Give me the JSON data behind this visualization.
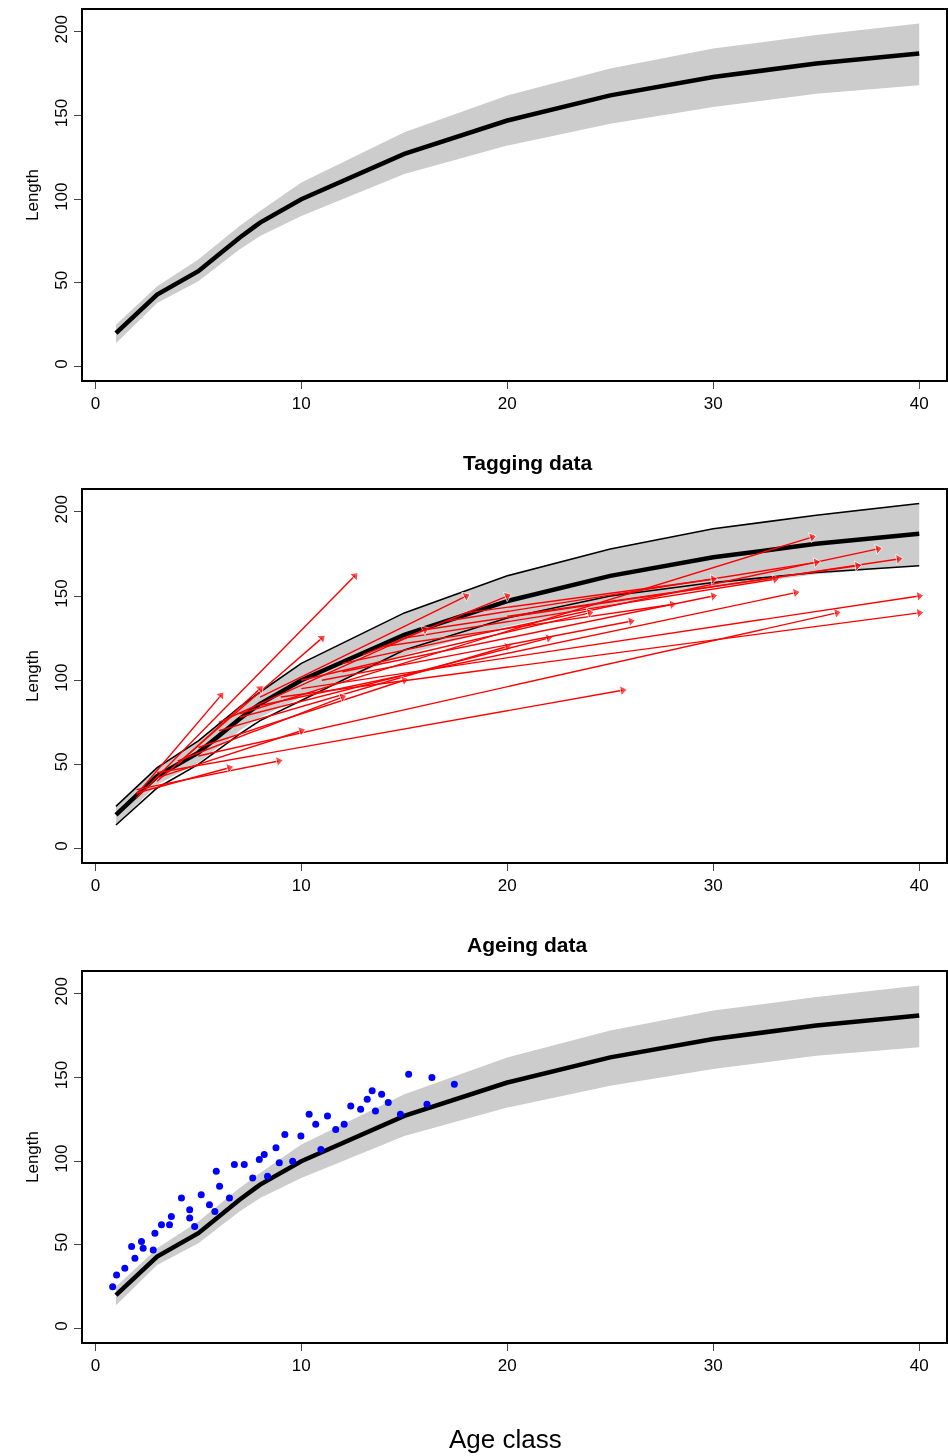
{
  "chart_data": [
    {
      "type": "line",
      "ylabel": "Length",
      "xlim": [
        -0.6,
        41.3
      ],
      "ylim": [
        -8,
        213
      ],
      "xticks": [
        0,
        10,
        20,
        30,
        40
      ],
      "yticks": [
        0,
        50,
        100,
        150,
        200
      ],
      "series": [
        {
          "color": "#000000",
          "x": [
            1,
            3,
            5,
            7,
            8,
            10,
            15,
            20,
            25,
            30,
            35,
            40
          ],
          "values": [
            20,
            43,
            57,
            77,
            86,
            100,
            127,
            147,
            162,
            173,
            181,
            187
          ],
          "lower": [
            14,
            38,
            51,
            70,
            78,
            90,
            115,
            132,
            145,
            155,
            163,
            168
          ],
          "upper": [
            25,
            48,
            64,
            84,
            93,
            110,
            140,
            162,
            178,
            190,
            198,
            205
          ]
        }
      ]
    },
    {
      "type": "line",
      "title": "Tagging data",
      "ylabel": "Length",
      "xlim": [
        -0.6,
        41.3
      ],
      "ylim": [
        -8,
        213
      ],
      "xticks": [
        0,
        10,
        20,
        30,
        40
      ],
      "yticks": [
        0,
        50,
        100,
        150,
        200
      ],
      "series": [
        {
          "color": "#000000",
          "x": [
            1,
            3,
            5,
            7,
            8,
            10,
            15,
            20,
            25,
            30,
            35,
            40
          ],
          "values": [
            20,
            43,
            57,
            77,
            86,
            100,
            127,
            147,
            162,
            173,
            181,
            187
          ],
          "lower": [
            14,
            38,
            51,
            70,
            78,
            90,
            115,
            132,
            145,
            155,
            163,
            168
          ],
          "upper": [
            25,
            48,
            64,
            84,
            93,
            110,
            140,
            162,
            178,
            190,
            198,
            205
          ]
        },
        {
          "color": "#000000",
          "x": [
            1,
            3,
            5,
            7,
            8,
            10,
            15,
            20,
            25,
            30,
            35,
            40
          ],
          "values": [
            25,
            48,
            64,
            84,
            93,
            110,
            140,
            162,
            178,
            190,
            198,
            205
          ]
        },
        {
          "color": "#000000",
          "x": [
            1,
            3,
            5,
            7,
            8,
            10,
            15,
            20,
            25,
            30,
            35,
            40
          ],
          "values": [
            14,
            36,
            50,
            68,
            76,
            88,
            118,
            137,
            150,
            158,
            164,
            168
          ]
        },
        {
          "color": "#ff0000",
          "marker": "triangle",
          "x": [
            2,
            12.6
          ],
          "values": [
            30,
            162
          ]
        },
        {
          "color": "#ff0000",
          "marker": "triangle",
          "x": [
            2,
            6.1
          ],
          "values": [
            32,
            91
          ]
        },
        {
          "color": "#ff0000",
          "marker": "triangle",
          "x": [
            3,
            11
          ],
          "values": [
            40,
            125
          ]
        },
        {
          "color": "#ff0000",
          "marker": "triangle",
          "x": [
            2,
            8.9
          ],
          "values": [
            35,
            52
          ]
        },
        {
          "color": "#ff0000",
          "marker": "triangle",
          "x": [
            2,
            6.5
          ],
          "values": [
            33,
            48
          ]
        },
        {
          "color": "#ff0000",
          "marker": "triangle",
          "x": [
            3,
            25.6
          ],
          "values": [
            45,
            94
          ]
        },
        {
          "color": "#ff0000",
          "marker": "triangle",
          "x": [
            5,
            36
          ],
          "values": [
            55,
            140
          ]
        },
        {
          "color": "#ff0000",
          "marker": "triangle",
          "x": [
            7,
            34.8
          ],
          "values": [
            80,
            185
          ]
        },
        {
          "color": "#ff0000",
          "marker": "triangle",
          "x": [
            10,
            40
          ],
          "values": [
            95,
            150
          ]
        },
        {
          "color": "#ff0000",
          "marker": "triangle",
          "x": [
            8,
            34
          ],
          "values": [
            85,
            152
          ]
        },
        {
          "color": "#ff0000",
          "marker": "triangle",
          "x": [
            12,
            38
          ],
          "values": [
            110,
            178
          ]
        },
        {
          "color": "#ff0000",
          "marker": "triangle",
          "x": [
            15,
            33
          ],
          "values": [
            125,
            160
          ]
        },
        {
          "color": "#ff0000",
          "marker": "triangle",
          "x": [
            17,
            35
          ],
          "values": [
            135,
            170
          ]
        },
        {
          "color": "#ff0000",
          "marker": "triangle",
          "x": [
            14,
            28
          ],
          "values": [
            120,
            145
          ]
        },
        {
          "color": "#ff0000",
          "marker": "triangle",
          "x": [
            18,
            30
          ],
          "values": [
            140,
            160
          ]
        },
        {
          "color": "#ff0000",
          "marker": "triangle",
          "x": [
            6,
            20
          ],
          "values": [
            70,
            120
          ]
        },
        {
          "color": "#ff0000",
          "marker": "triangle",
          "x": [
            5,
            15
          ],
          "values": [
            60,
            100
          ]
        },
        {
          "color": "#ff0000",
          "marker": "triangle",
          "x": [
            4,
            12
          ],
          "values": [
            52,
            90
          ]
        },
        {
          "color": "#ff0000",
          "marker": "triangle",
          "x": [
            6,
            16
          ],
          "values": [
            75,
            130
          ]
        },
        {
          "color": "#ff0000",
          "marker": "triangle",
          "x": [
            8,
            18
          ],
          "values": [
            90,
            150
          ]
        },
        {
          "color": "#ff0000",
          "marker": "triangle",
          "x": [
            10,
            24
          ],
          "values": [
            100,
            140
          ]
        },
        {
          "color": "#ff0000",
          "marker": "triangle",
          "x": [
            12,
            30
          ],
          "values": [
            105,
            150
          ]
        },
        {
          "color": "#ff0000",
          "marker": "triangle",
          "x": [
            9,
            40
          ],
          "values": [
            90,
            140
          ]
        },
        {
          "color": "#ff0000",
          "marker": "triangle",
          "x": [
            16,
            39
          ],
          "values": [
            130,
            172
          ]
        },
        {
          "color": "#ff0000",
          "marker": "triangle",
          "x": [
            4,
            8
          ],
          "values": [
            50,
            95
          ]
        },
        {
          "color": "#ff0000",
          "marker": "triangle",
          "x": [
            3,
            10
          ],
          "values": [
            42,
            70
          ]
        },
        {
          "color": "#ff0000",
          "marker": "triangle",
          "x": [
            20,
            37
          ],
          "values": [
            138,
            168
          ]
        },
        {
          "color": "#ff0000",
          "marker": "triangle",
          "x": [
            7,
            22
          ],
          "values": [
            78,
            125
          ]
        },
        {
          "color": "#ff0000",
          "marker": "triangle",
          "x": [
            11,
            26
          ],
          "values": [
            100,
            135
          ]
        },
        {
          "color": "#ff0000",
          "marker": "triangle",
          "x": [
            13,
            20
          ],
          "values": [
            115,
            150
          ]
        }
      ]
    },
    {
      "type": "line",
      "title": "Ageing data",
      "xlabel": "Age class",
      "ylabel": "Length",
      "xlim": [
        -0.6,
        41.3
      ],
      "ylim": [
        -8,
        213
      ],
      "xticks": [
        0,
        10,
        20,
        30,
        40
      ],
      "yticks": [
        0,
        50,
        100,
        150,
        200
      ],
      "series": [
        {
          "color": "#000000",
          "x": [
            1,
            3,
            5,
            7,
            8,
            10,
            15,
            20,
            25,
            30,
            35,
            40
          ],
          "values": [
            20,
            43,
            57,
            77,
            86,
            100,
            127,
            147,
            162,
            173,
            181,
            187
          ],
          "lower": [
            14,
            38,
            51,
            70,
            78,
            90,
            115,
            132,
            145,
            155,
            163,
            168
          ],
          "upper": [
            25,
            48,
            64,
            84,
            93,
            110,
            140,
            162,
            178,
            190,
            198,
            205
          ]
        },
        {
          "type": "scatter",
          "color": "#0000ff",
          "marker": "circle",
          "x": [
            0.84,
            1.03,
            1.43,
            1.76,
            1.92,
            2.24,
            2.32,
            2.81,
            2.89,
            3.21,
            3.6,
            3.69,
            4.18,
            4.58,
            4.58,
            4.82,
            5.14,
            5.54,
            5.8,
            5.87,
            6.03,
            6.51,
            6.75,
            7.23,
            7.64,
            7.96,
            8.2,
            8.36,
            8.77,
            8.93,
            9.2,
            9.58,
            9.98,
            10.38,
            10.7,
            10.95,
            11.27,
            11.67,
            12.08,
            12.4,
            12.88,
            13.2,
            13.44,
            13.6,
            13.9,
            14.22,
            14.81,
            15.21,
            16.1,
            16.34,
            17.43
          ],
          "values": [
            25,
            32,
            36,
            49,
            42,
            52,
            48,
            47,
            57,
            62,
            62,
            67,
            78,
            71,
            66,
            61,
            80,
            74,
            70,
            94,
            85,
            78,
            98,
            98,
            90,
            101,
            104,
            91,
            108,
            99,
            116,
            100,
            115,
            128,
            122,
            107,
            127,
            119,
            122,
            133,
            131,
            137,
            142,
            130,
            140,
            135,
            128,
            152,
            134,
            150,
            146
          ]
        }
      ]
    }
  ]
}
